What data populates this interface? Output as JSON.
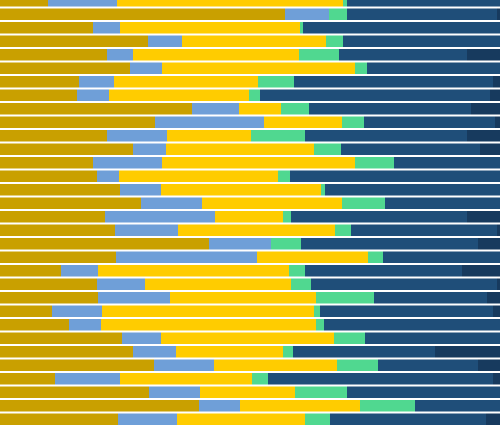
{
  "chart_data": {
    "type": "stacked-barh",
    "xlim": [
      0,
      100
    ],
    "categories": [
      null,
      null,
      null,
      null,
      null,
      null,
      null,
      null,
      null,
      null,
      null,
      null,
      null,
      null,
      null,
      null,
      null,
      null,
      null,
      null,
      null,
      null,
      null,
      null,
      null,
      null,
      null,
      null,
      null,
      null,
      null,
      null
    ],
    "series": [
      {
        "color": "#c9a000",
        "values": [
          9.6,
          57,
          18.6,
          29.6,
          21.4,
          26,
          15.8,
          15.4,
          38.4,
          31,
          21.4,
          26.6,
          18.6,
          19.4,
          24,
          28.2,
          21,
          23,
          41.8,
          23.2,
          12.2,
          19.4,
          19.6,
          10.4,
          13.8,
          24.4,
          26.6,
          30.8,
          11,
          29.8,
          39.8,
          23.6
        ]
      },
      {
        "color": "#6f9fd8",
        "values": [
          13.8,
          8.8,
          5.4,
          6.8,
          5.2,
          6.4,
          7,
          6.4,
          9.4,
          21.8,
          12,
          6.6,
          13.8,
          4.4,
          8.2,
          12.2,
          22,
          12.6,
          12.4,
          28.2,
          7.4,
          9.6,
          14.4,
          10,
          6.4,
          7.8,
          8.6,
          12,
          13,
          10.2,
          8.2,
          11.8
        ]
      },
      {
        "color": "#ffcc00",
        "values": [
          45.2,
          0,
          36,
          28.8,
          33.2,
          38.6,
          28.8,
          28,
          8.4,
          15.6,
          16.8,
          29.6,
          38.6,
          31.8,
          32,
          28,
          13.6,
          31.4,
          0,
          22.2,
          38.2,
          29.2,
          29.2,
          42.4,
          43,
          34.6,
          21.4,
          24.6,
          26.4,
          19,
          24,
          25.6
        ]
      },
      {
        "color": "#50d890",
        "values": [
          0.8,
          3.6,
          0.6,
          3.4,
          8,
          2.4,
          7.2,
          2.2,
          5.6,
          4.4,
          10.8,
          5.4,
          7.8,
          2.4,
          0.8,
          8.6,
          1.6,
          3.2,
          6,
          3,
          3.2,
          4,
          11.6,
          1.2,
          1.6,
          6.2,
          2,
          8.2,
          3.2,
          10.4,
          11,
          5
        ]
      },
      {
        "color": "#1f4e79",
        "values": [
          30.6,
          30,
          39.4,
          31.4,
          25.6,
          26.6,
          39.8,
          46,
          32.4,
          26.2,
          32.4,
          27.8,
          21.2,
          42,
          35,
          23,
          35.2,
          29.2,
          35.4,
          23.4,
          31.4,
          37.2,
          22.6,
          34.6,
          35.2,
          27,
          28.4,
          20,
          45,
          30.6,
          17,
          31.2
        ]
      },
      {
        "color": "#173a5e",
        "values": [
          0,
          0.6,
          0,
          0,
          6.6,
          0,
          1.4,
          2,
          5.8,
          1,
          6.6,
          4,
          0,
          0,
          0,
          0,
          6.6,
          0.6,
          4.4,
          0,
          7.6,
          0.6,
          2.6,
          1.4,
          0,
          0,
          13,
          4.4,
          1.4,
          0,
          0,
          2.8
        ]
      }
    ]
  }
}
